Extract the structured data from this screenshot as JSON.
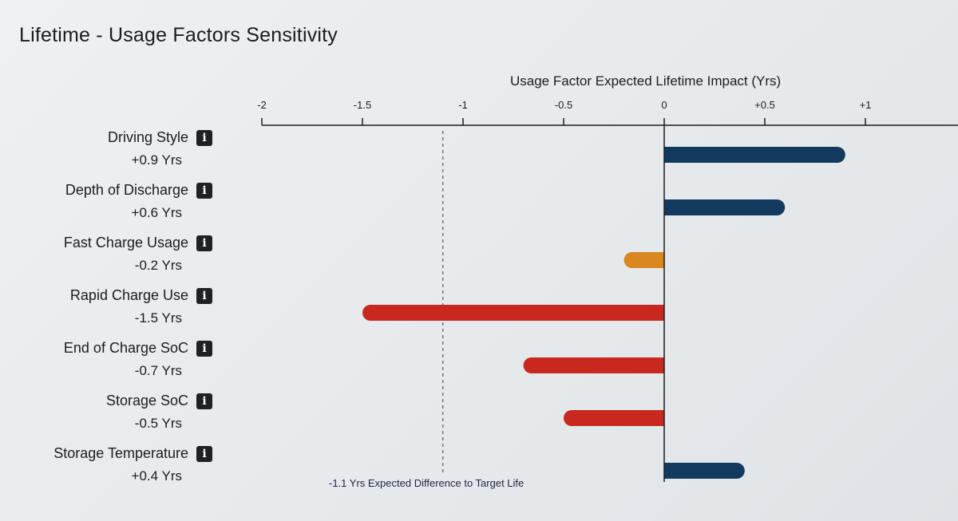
{
  "chart_data": {
    "type": "bar",
    "orientation": "horizontal",
    "title": "Lifetime - Usage Factors Sensitivity",
    "xlabel": "Usage Factor Expected Lifetime Impact (Yrs)",
    "xlim": [
      -2,
      1.4
    ],
    "xticks": [
      {
        "value": -2,
        "label": "-2"
      },
      {
        "value": -1.5,
        "label": "-1.5"
      },
      {
        "value": -1,
        "label": "-1"
      },
      {
        "value": -0.5,
        "label": "-0.5"
      },
      {
        "value": 0,
        "label": "0"
      },
      {
        "value": 0.5,
        "label": "+0.5"
      },
      {
        "value": 1,
        "label": "+1"
      }
    ],
    "categories": [
      "Driving Style",
      "Depth of Discharge",
      "Fast Charge Usage",
      "Rapid Charge Use",
      "End of Charge SoC",
      "Storage SoC",
      "Storage Temperature"
    ],
    "value_labels": [
      "+0.9 Yrs",
      "+0.6 Yrs",
      "-0.2 Yrs",
      "-1.5 Yrs",
      "-0.7 Yrs",
      "-0.5 Yrs",
      "+0.4 Yrs"
    ],
    "values": [
      0.9,
      0.6,
      -0.2,
      -1.5,
      -0.7,
      -0.5,
      0.4
    ],
    "bar_colors": [
      "#123a5e",
      "#123a5e",
      "#d9871f",
      "#c8281e",
      "#c8281e",
      "#c8281e",
      "#123a5e"
    ],
    "reference_line": {
      "value": -1.1,
      "label": "-1.1 Yrs Expected Difference to Target Life"
    }
  }
}
